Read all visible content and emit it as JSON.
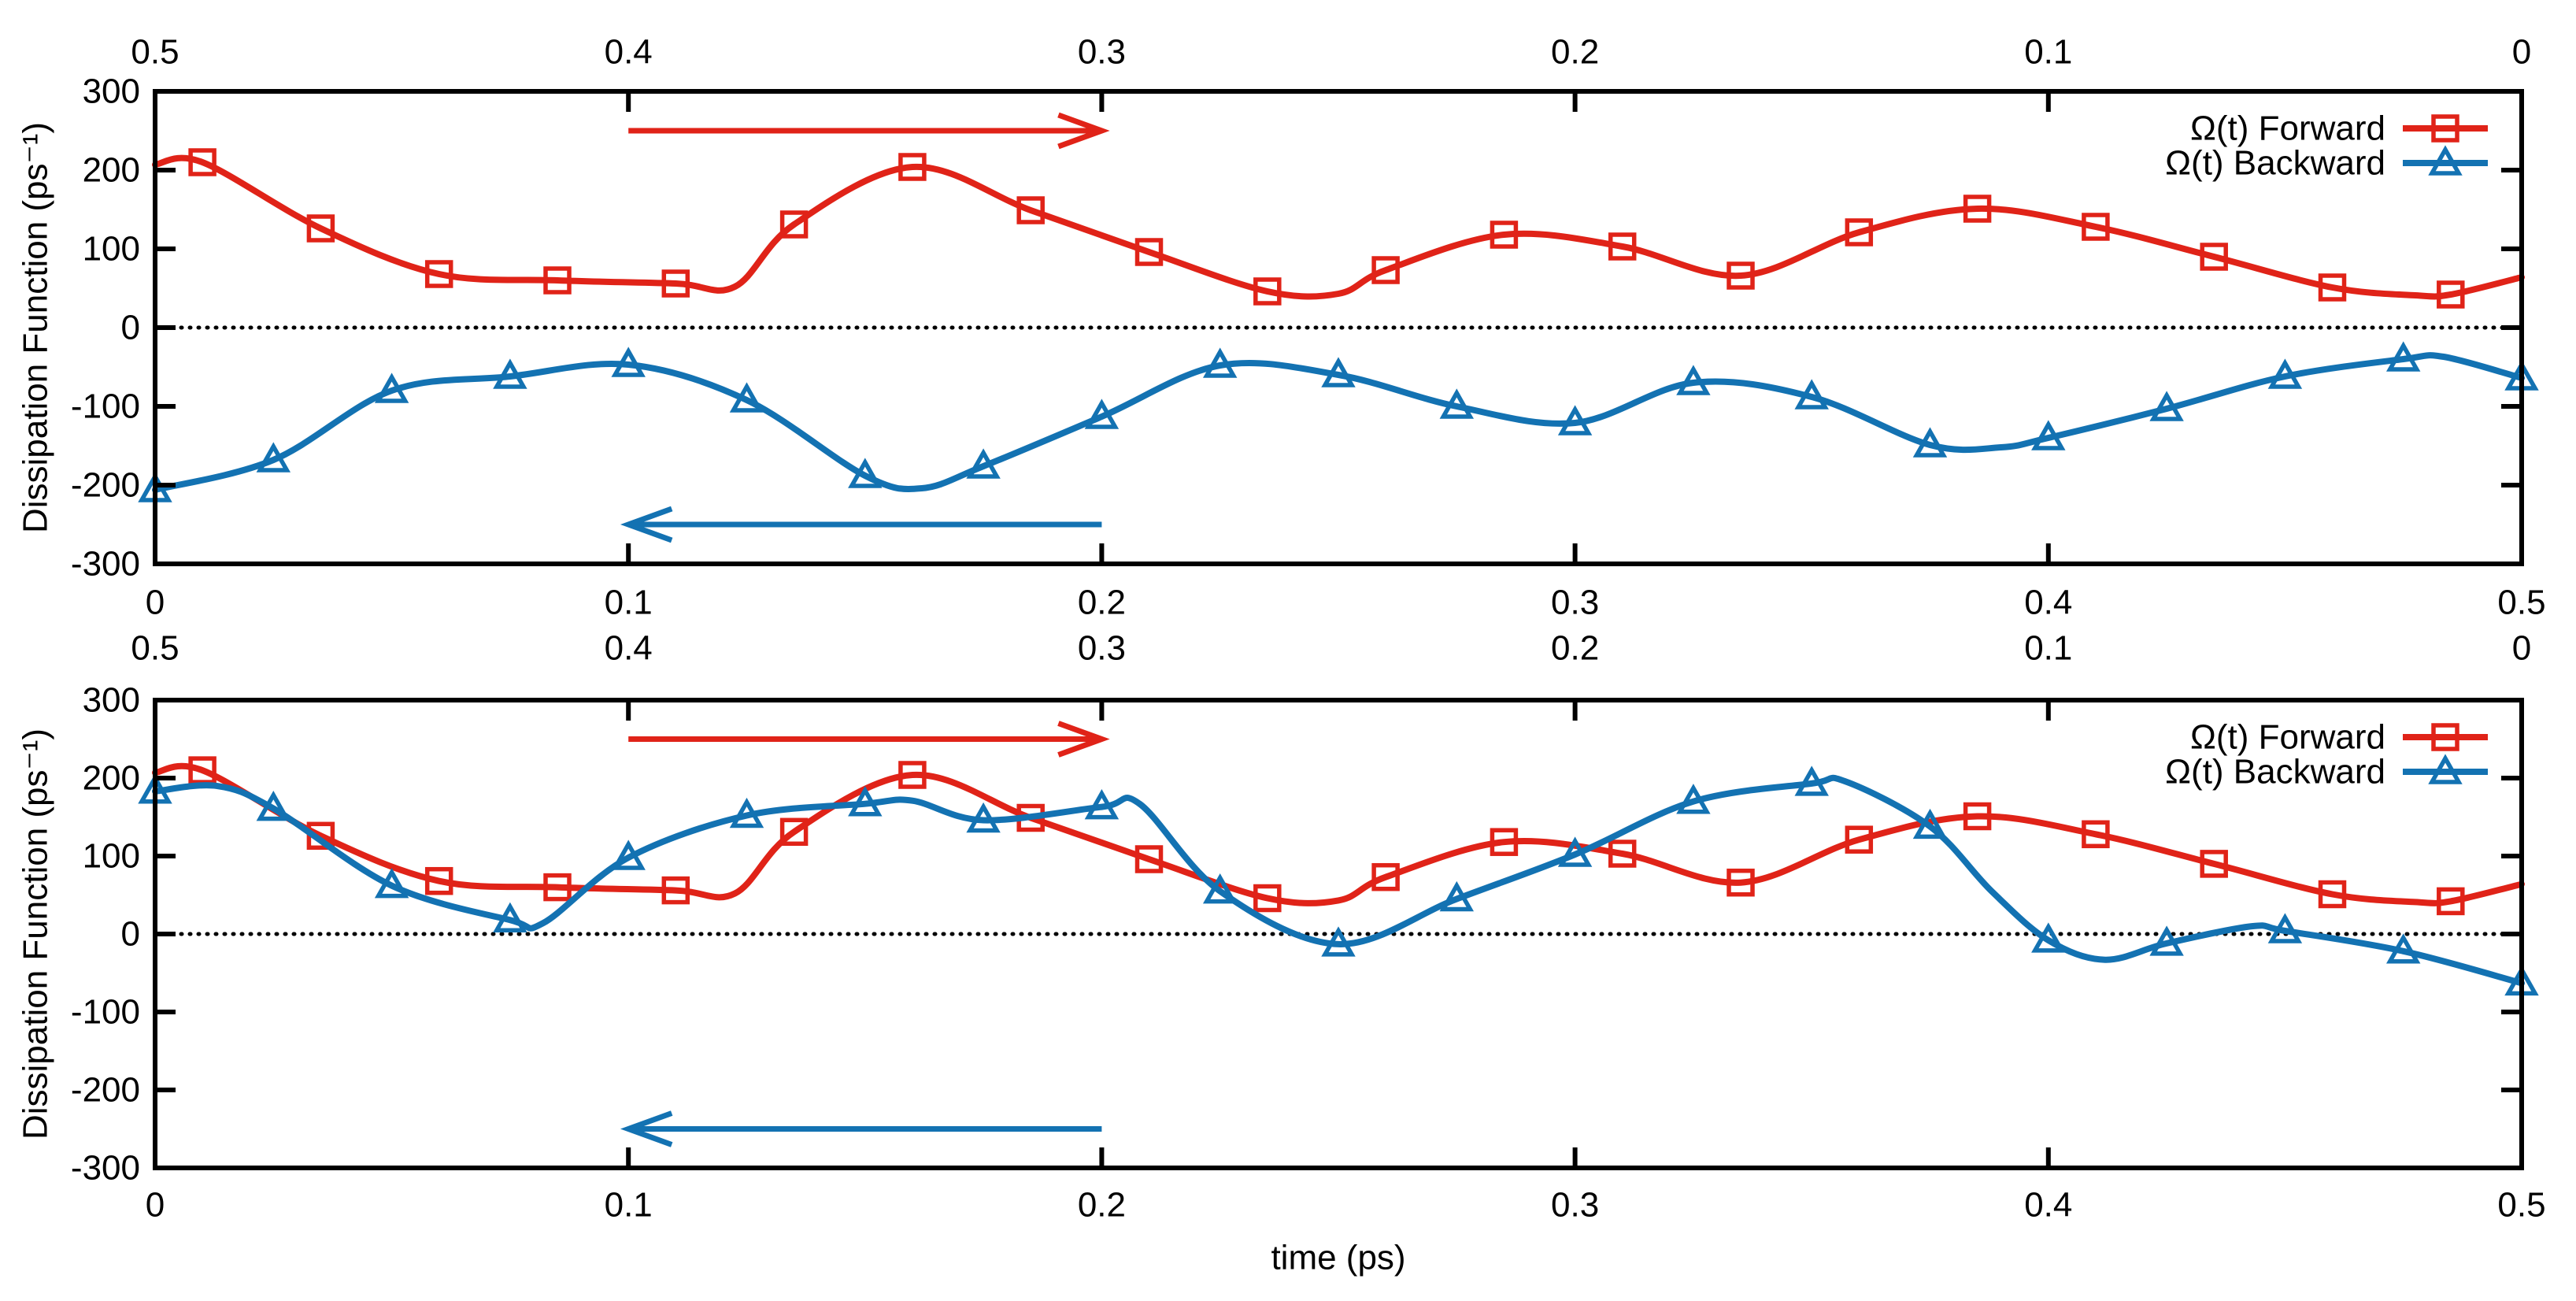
{
  "figure": {
    "background": "#ffffff",
    "axis_color": "#000000"
  },
  "colors": {
    "forward": "#e02318",
    "backward": "#1372b2",
    "zero_line": "#000000"
  },
  "axes": {
    "xlabel": "time (ps)",
    "ylabel": "Dissipation Function (ps⁻¹)",
    "x_range": [
      0,
      0.5
    ],
    "y_range": [
      -300,
      300
    ],
    "x_ticks_bottom": [
      "0",
      "0.1",
      "0.2",
      "0.3",
      "0.4",
      "0.5"
    ],
    "x_ticks_top": [
      "0.5",
      "0.4",
      "0.3",
      "0.2",
      "0.1",
      "0"
    ],
    "y_ticks": [
      "-300",
      "-200",
      "-100",
      "0",
      "100",
      "200",
      "300"
    ]
  },
  "chart_data": [
    {
      "type": "line",
      "panel": "top",
      "title": "",
      "xlabel": "",
      "ylabel": "Dissipation Function (ps⁻¹)",
      "x_range": [
        0,
        0.5
      ],
      "y_range": [
        -300,
        300
      ],
      "grid": false,
      "zero_line_dotted": true,
      "legend_position": "top-right",
      "x_ticks_bottom": [
        "0",
        "0.1",
        "0.2",
        "0.3",
        "0.4",
        "0.5"
      ],
      "x_ticks_top": [
        "0.5",
        "0.4",
        "0.3",
        "0.2",
        "0.1",
        "0"
      ],
      "y_ticks": [
        "-300",
        "-200",
        "-100",
        "0",
        "100",
        "200",
        "300"
      ],
      "series": [
        {
          "name": "Ω(t) Forward",
          "color_key": "forward",
          "marker": "square",
          "path_t": [
            0,
            0.01,
            0.035,
            0.06,
            0.085,
            0.11,
            0.1225,
            0.135,
            0.16,
            0.185,
            0.21,
            0.235,
            0.25,
            0.26,
            0.285,
            0.31,
            0.335,
            0.36,
            0.385,
            0.41,
            0.435,
            0.46,
            0.4775,
            0.485,
            0.5
          ],
          "path_v": [
            207,
            210,
            126,
            68,
            60,
            56,
            52,
            131,
            204,
            149,
            96,
            46,
            43,
            73,
            118,
            103,
            66,
            121,
            151,
            128,
            90,
            51,
            41,
            42,
            64
          ],
          "marker_t": [
            0.01,
            0.035,
            0.06,
            0.085,
            0.11,
            0.135,
            0.16,
            0.185,
            0.21,
            0.235,
            0.26,
            0.285,
            0.31,
            0.335,
            0.36,
            0.385,
            0.41,
            0.435,
            0.46,
            0.485
          ],
          "marker_v": [
            210,
            126,
            68,
            60,
            56,
            131,
            204,
            149,
            96,
            46,
            73,
            118,
            103,
            66,
            121,
            151,
            128,
            90,
            51,
            42
          ]
        },
        {
          "name": "Ω(t) Backward",
          "color_key": "backward",
          "marker": "triangle",
          "path_t": [
            0,
            0.025,
            0.05,
            0.075,
            0.1,
            0.125,
            0.15,
            0.162,
            0.175,
            0.2,
            0.225,
            0.25,
            0.275,
            0.3,
            0.325,
            0.35,
            0.375,
            0.39,
            0.4,
            0.425,
            0.45,
            0.475,
            0.4835,
            0.5
          ],
          "path_v": [
            -206,
            -168,
            -80,
            -62,
            -47,
            -92,
            -188,
            -204,
            -176,
            -113,
            -48,
            -60,
            -100,
            -121,
            -70,
            -88,
            -149,
            -152,
            -140,
            -103,
            -62,
            -40,
            -37,
            -64
          ],
          "marker_t": [
            0,
            0.025,
            0.05,
            0.075,
            0.1,
            0.125,
            0.15,
            0.175,
            0.2,
            0.225,
            0.25,
            0.275,
            0.3,
            0.325,
            0.35,
            0.375,
            0.4,
            0.425,
            0.45,
            0.475,
            0.5
          ],
          "marker_v": [
            -206,
            -168,
            -80,
            -62,
            -47,
            -92,
            -188,
            -176,
            -113,
            -48,
            -60,
            -100,
            -121,
            -70,
            -88,
            -149,
            -140,
            -103,
            -62,
            -40,
            -64
          ]
        }
      ],
      "arrows": [
        {
          "series": "forward",
          "from_t": 0.1,
          "to_t": 0.2,
          "value": 250
        },
        {
          "series": "backward",
          "from_t": 0.2,
          "to_t": 0.1,
          "value": -250
        }
      ]
    },
    {
      "type": "line",
      "panel": "bottom",
      "title": "",
      "xlabel": "time (ps)",
      "ylabel": "Dissipation Function (ps⁻¹)",
      "x_range": [
        0,
        0.5
      ],
      "y_range": [
        -300,
        300
      ],
      "grid": false,
      "zero_line_dotted": true,
      "legend_position": "top-right",
      "x_ticks_bottom": [
        "0",
        "0.1",
        "0.2",
        "0.3",
        "0.4",
        "0.5"
      ],
      "x_ticks_top": [
        "0.5",
        "0.4",
        "0.3",
        "0.2",
        "0.1",
        "0"
      ],
      "y_ticks": [
        "-300",
        "-200",
        "-100",
        "0",
        "100",
        "200",
        "300"
      ],
      "series": [
        {
          "name": "Ω(t) Forward",
          "color_key": "forward",
          "marker": "square",
          "path_t": [
            0,
            0.01,
            0.035,
            0.06,
            0.085,
            0.11,
            0.1225,
            0.135,
            0.16,
            0.185,
            0.21,
            0.235,
            0.25,
            0.26,
            0.285,
            0.31,
            0.335,
            0.36,
            0.385,
            0.41,
            0.435,
            0.46,
            0.4775,
            0.485,
            0.5
          ],
          "path_v": [
            207,
            210,
            126,
            68,
            60,
            56,
            52,
            131,
            204,
            149,
            96,
            46,
            43,
            73,
            118,
            103,
            66,
            121,
            151,
            128,
            90,
            51,
            41,
            42,
            64
          ],
          "marker_t": [
            0.01,
            0.035,
            0.06,
            0.085,
            0.11,
            0.135,
            0.16,
            0.185,
            0.21,
            0.235,
            0.26,
            0.285,
            0.31,
            0.335,
            0.36,
            0.385,
            0.41,
            0.435,
            0.46,
            0.485
          ],
          "marker_v": [
            210,
            126,
            68,
            60,
            56,
            131,
            204,
            149,
            96,
            46,
            73,
            118,
            103,
            66,
            121,
            151,
            128,
            90,
            51,
            42
          ]
        },
        {
          "name": "Ω(t) Backward",
          "color_key": "backward",
          "marker": "triangle",
          "path_t": [
            0,
            0.013,
            0.025,
            0.05,
            0.075,
            0.082,
            0.1,
            0.125,
            0.15,
            0.16,
            0.175,
            0.2,
            0.208,
            0.225,
            0.25,
            0.275,
            0.3,
            0.325,
            0.35,
            0.357,
            0.375,
            0.388,
            0.4,
            0.412,
            0.425,
            0.443,
            0.45,
            0.475,
            0.5
          ],
          "path_v": [
            183,
            190,
            161,
            62,
            18,
            14,
            98,
            152,
            167,
            171,
            146,
            163,
            167,
            55,
            -13,
            45,
            102,
            170,
            193,
            196,
            138,
            55,
            -8,
            -33,
            -12,
            10,
            4,
            -22,
            -63
          ],
          "marker_t": [
            0,
            0.025,
            0.05,
            0.075,
            0.1,
            0.125,
            0.15,
            0.175,
            0.2,
            0.225,
            0.25,
            0.275,
            0.3,
            0.325,
            0.35,
            0.375,
            0.4,
            0.425,
            0.45,
            0.475,
            0.5
          ],
          "marker_v": [
            183,
            161,
            62,
            18,
            98,
            152,
            167,
            146,
            163,
            55,
            -13,
            45,
            102,
            170,
            193,
            138,
            -8,
            -12,
            4,
            -22,
            -63
          ]
        }
      ],
      "arrows": [
        {
          "series": "forward",
          "from_t": 0.1,
          "to_t": 0.2,
          "value": 250
        },
        {
          "series": "backward",
          "from_t": 0.2,
          "to_t": 0.1,
          "value": -250
        }
      ]
    }
  ]
}
